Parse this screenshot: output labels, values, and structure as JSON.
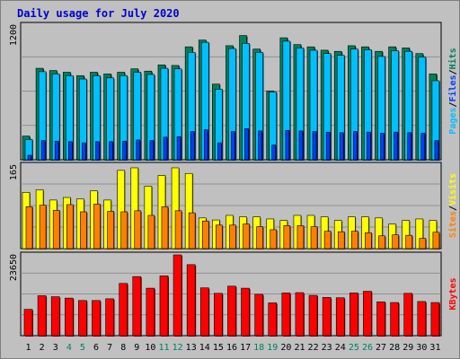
{
  "title": "Daily usage for July 2020",
  "chart_data": [
    {
      "type": "bar",
      "name": "pages-files-hits",
      "ymax_label": "1200",
      "ylim": [
        0,
        1200
      ],
      "right_labels": [
        "Pages",
        "Files",
        "Hits"
      ],
      "categories": [
        "1",
        "2",
        "3",
        "4",
        "5",
        "6",
        "7",
        "8",
        "9",
        "10",
        "11",
        "12",
        "13",
        "14",
        "15",
        "16",
        "17",
        "18",
        "19",
        "20",
        "21",
        "22",
        "23",
        "24",
        "25",
        "26",
        "27",
        "28",
        "29",
        "30",
        "31"
      ],
      "series": [
        {
          "name": "Hits",
          "values": [
            210,
            810,
            790,
            775,
            745,
            775,
            760,
            775,
            805,
            785,
            840,
            835,
            1000,
            1060,
            670,
            1010,
            1100,
            980,
            610,
            1080,
            1020,
            1000,
            970,
            960,
            1010,
            1000,
            960,
            1000,
            990,
            940,
            760
          ]
        },
        {
          "name": "Files",
          "values": [
            180,
            780,
            760,
            745,
            715,
            745,
            725,
            745,
            775,
            755,
            810,
            805,
            950,
            1040,
            625,
            985,
            1030,
            950,
            600,
            1050,
            990,
            970,
            940,
            925,
            980,
            975,
            915,
            965,
            960,
            910,
            700
          ]
        },
        {
          "name": "Pages",
          "values": [
            40,
            170,
            165,
            160,
            150,
            160,
            160,
            165,
            175,
            170,
            200,
            205,
            250,
            265,
            150,
            250,
            275,
            255,
            130,
            260,
            255,
            250,
            245,
            240,
            250,
            245,
            235,
            245,
            240,
            235,
            170
          ]
        }
      ]
    },
    {
      "type": "bar",
      "name": "sites-visits",
      "ymax_label": "165",
      "ylim": [
        0,
        165
      ],
      "right_labels": [
        "Sites",
        "Visits"
      ],
      "categories": [
        "1",
        "2",
        "3",
        "4",
        "5",
        "6",
        "7",
        "8",
        "9",
        "10",
        "11",
        "12",
        "13",
        "14",
        "15",
        "16",
        "17",
        "18",
        "19",
        "20",
        "21",
        "22",
        "23",
        "24",
        "25",
        "26",
        "27",
        "28",
        "29",
        "30",
        "31"
      ],
      "series": [
        {
          "name": "Visits",
          "values": [
            110,
            115,
            95,
            100,
            97,
            113,
            95,
            153,
            158,
            122,
            143,
            158,
            147,
            60,
            56,
            65,
            62,
            62,
            58,
            55,
            65,
            65,
            62,
            55,
            62,
            62,
            60,
            48,
            55,
            58,
            55
          ]
        },
        {
          "name": "Sites",
          "values": [
            82,
            85,
            75,
            86,
            72,
            87,
            73,
            72,
            74,
            65,
            82,
            74,
            70,
            54,
            46,
            46,
            48,
            43,
            37,
            45,
            45,
            43,
            34,
            33,
            34,
            31,
            25,
            27,
            26,
            20,
            32
          ]
        }
      ]
    },
    {
      "type": "bar",
      "name": "kbytes",
      "ymax_label": "23650",
      "ylim": [
        0,
        23650
      ],
      "right_labels": [
        "KBytes"
      ],
      "categories": [
        "1",
        "2",
        "3",
        "4",
        "5",
        "6",
        "7",
        "8",
        "9",
        "10",
        "11",
        "12",
        "13",
        "14",
        "15",
        "16",
        "17",
        "18",
        "19",
        "20",
        "21",
        "22",
        "23",
        "24",
        "25",
        "26",
        "27",
        "28",
        "29",
        "30",
        "31"
      ],
      "series": [
        {
          "name": "KBytes",
          "values": [
            7700,
            11700,
            11400,
            11000,
            10300,
            10300,
            10800,
            15300,
            17300,
            13900,
            17500,
            23650,
            20800,
            14000,
            12400,
            14500,
            13900,
            12100,
            9600,
            12500,
            12600,
            11800,
            11200,
            11100,
            12500,
            13000,
            9900,
            9700,
            12400,
            10000,
            9700
          ]
        }
      ]
    }
  ],
  "x_labels": [
    "1",
    "2",
    "3",
    "4",
    "5",
    "6",
    "7",
    "8",
    "9",
    "10",
    "11",
    "12",
    "13",
    "14",
    "15",
    "16",
    "17",
    "18",
    "19",
    "20",
    "21",
    "22",
    "23",
    "24",
    "25",
    "26",
    "27",
    "28",
    "29",
    "30",
    "31"
  ],
  "weekend_days": [
    4,
    5,
    11,
    12,
    18,
    19,
    25,
    26
  ],
  "colors": {
    "hits": "#00805c",
    "files": "#00c0ff",
    "pages": "#0040ff",
    "visits": "#ffff00",
    "sites": "#ff8000",
    "kbytes": "#ff0000",
    "title": "#0000cc",
    "weekday_label": "#000000",
    "weekend_label": "#00805c",
    "plot_bg": "#c0c0c0",
    "grid": "#808080"
  }
}
